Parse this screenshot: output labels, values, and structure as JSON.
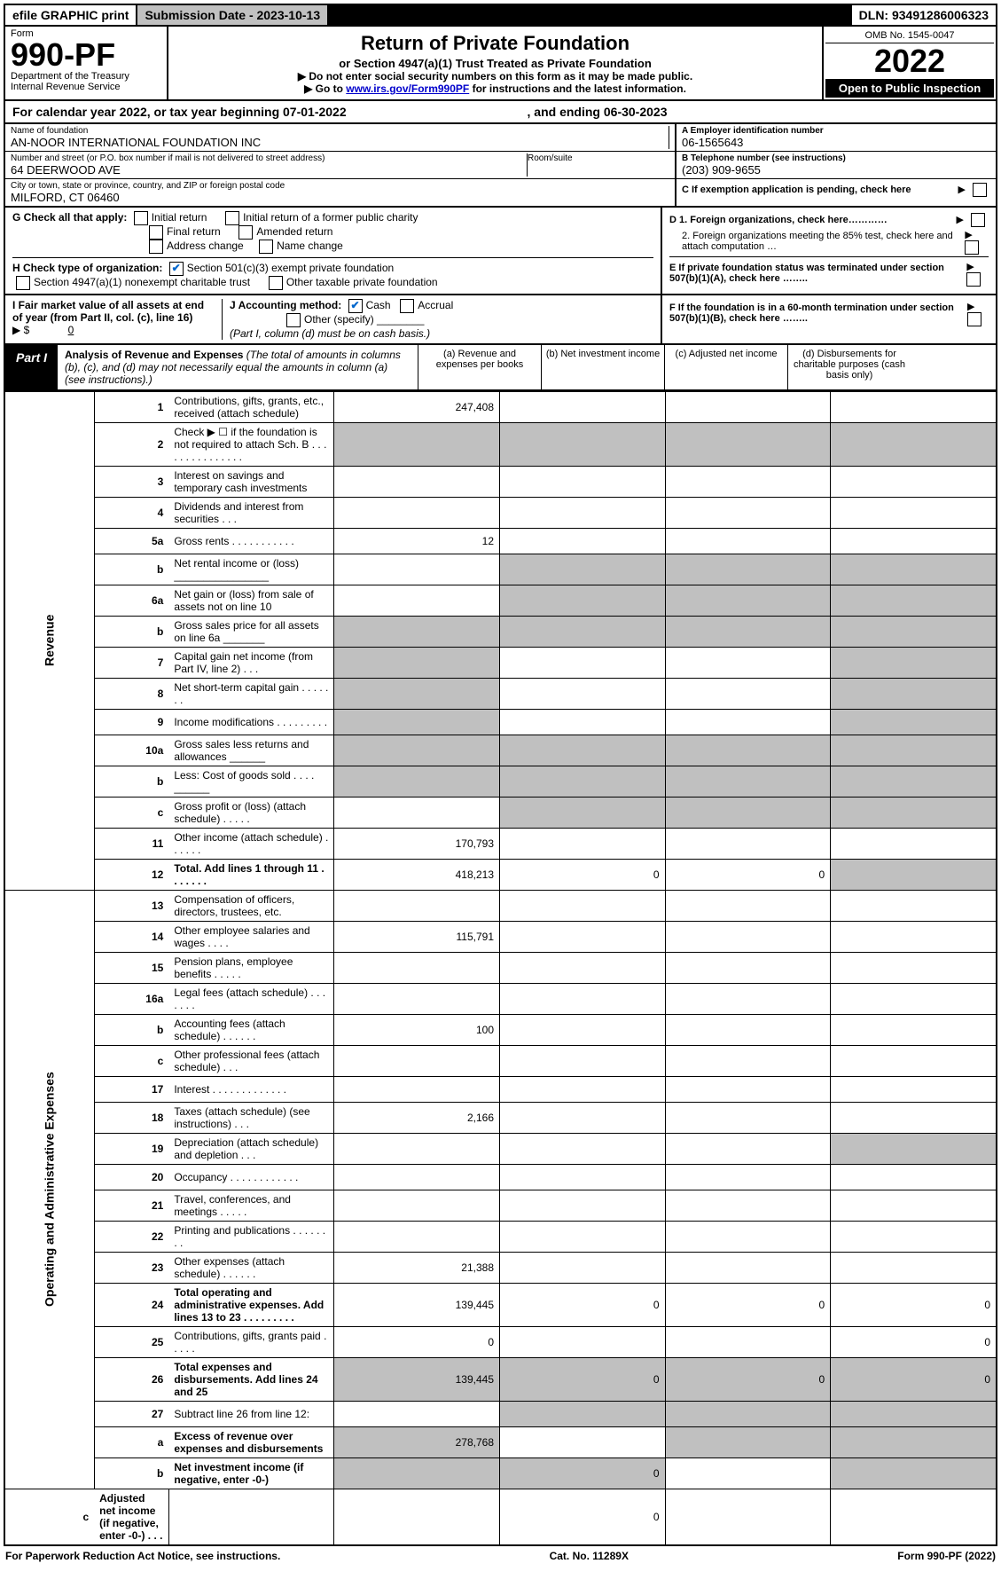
{
  "topbar": {
    "efile": "efile GRAPHIC print",
    "submission_label": "Submission Date - 2023-10-13",
    "dln": "DLN: 93491286006323"
  },
  "header": {
    "form_label": "Form",
    "form_num": "990-PF",
    "dept": "Department of the Treasury",
    "irs": "Internal Revenue Service",
    "title": "Return of Private Foundation",
    "subtitle": "or Section 4947(a)(1) Trust Treated as Private Foundation",
    "instr1": "▶ Do not enter social security numbers on this form as it may be made public.",
    "instr2_a": "▶ Go to ",
    "instr2_link": "www.irs.gov/Form990PF",
    "instr2_b": " for instructions and the latest information.",
    "omb": "OMB No. 1545-0047",
    "year": "2022",
    "open": "Open to Public Inspection"
  },
  "calyear": {
    "prefix": "For calendar year 2022, or tax year beginning ",
    "begin": "07-01-2022",
    "mid": " , and ending ",
    "end": "06-30-2023"
  },
  "info": {
    "name_lbl": "Name of foundation",
    "name": "AN-NOOR INTERNATIONAL FOUNDATION INC",
    "addr_lbl": "Number and street (or P.O. box number if mail is not delivered to street address)",
    "addr": "64 DEERWOOD AVE",
    "room_lbl": "Room/suite",
    "city_lbl": "City or town, state or province, country, and ZIP or foreign postal code",
    "city": "MILFORD, CT  06460",
    "a_lbl": "A Employer identification number",
    "ein": "06-1565643",
    "b_lbl": "B Telephone number (see instructions)",
    "phone": "(203) 909-9655",
    "c_lbl": "C If exemption application is pending, check here"
  },
  "g": {
    "lbl": "G Check all that apply:",
    "initial": "Initial return",
    "initial_former": "Initial return of a former public charity",
    "final": "Final return",
    "amended": "Amended return",
    "addr_change": "Address change",
    "name_change": "Name change"
  },
  "h": {
    "lbl": "H Check type of organization:",
    "501c3": "Section 501(c)(3) exempt private foundation",
    "4947": "Section 4947(a)(1) nonexempt charitable trust",
    "other_tax": "Other taxable private foundation"
  },
  "i": {
    "lbl": "I Fair market value of all assets at end of year (from Part II, col. (c), line 16)",
    "arrow": "▶ $",
    "val": "0"
  },
  "j": {
    "lbl": "J Accounting method:",
    "cash": "Cash",
    "accrual": "Accrual",
    "other": "Other (specify)",
    "note": "(Part I, column (d) must be on cash basis.)"
  },
  "d_right": {
    "d1": "D 1. Foreign organizations, check here…………",
    "d2": "2. Foreign organizations meeting the 85% test, check here and attach computation …",
    "e": "E  If private foundation status was terminated under section 507(b)(1)(A), check here ……..",
    "f": "F  If the foundation is in a 60-month termination under section 507(b)(1)(B), check here ……..  "
  },
  "part1": {
    "lbl": "Part I",
    "title": "Analysis of Revenue and Expenses",
    "title_note": " (The total of amounts in columns (b), (c), and (d) may not necessarily equal the amounts in column (a) (see instructions).)",
    "col_a": "(a)  Revenue and expenses per books",
    "col_b": "(b)  Net investment income",
    "col_c": "(c)  Adjusted net income",
    "col_d": "(d)  Disbursements for charitable purposes (cash basis only)"
  },
  "side": {
    "rev": "Revenue",
    "exp": "Operating and Administrative Expenses"
  },
  "rows": [
    {
      "n": "1",
      "d": "Contributions, gifts, grants, etc., received (attach schedule)",
      "a": "247,408"
    },
    {
      "n": "2",
      "d": "Check ▶ ☐ if the foundation is not required to attach Sch. B     .   .   .   .   .   .   .   .   .   .   .   .   .   .   ."
    },
    {
      "n": "3",
      "d": "Interest on savings and temporary cash investments"
    },
    {
      "n": "4",
      "d": "Dividends and interest from securities     .   .   ."
    },
    {
      "n": "5a",
      "d": "Gross rents       .   .   .   .   .   .   .   .   .   .   .",
      "a": "12"
    },
    {
      "n": "b",
      "d": "Net rental income or (loss) ________________"
    },
    {
      "n": "6a",
      "d": "Net gain or (loss) from sale of assets not on line 10"
    },
    {
      "n": "b",
      "d": "Gross sales price for all assets on line 6a _______"
    },
    {
      "n": "7",
      "d": "Capital gain net income (from Part IV, line 2)   .   .   ."
    },
    {
      "n": "8",
      "d": "Net short-term capital gain   .   .   .   .   .   .   ."
    },
    {
      "n": "9",
      "d": "Income modifications   .   .   .   .   .   .   .   .   ."
    },
    {
      "n": "10a",
      "d": "Gross sales less returns and allowances  ______"
    },
    {
      "n": "b",
      "d": "Less: Cost of goods sold     .   .   .   .  ______"
    },
    {
      "n": "c",
      "d": "Gross profit or (loss) (attach schedule)     .   .   .   .   ."
    },
    {
      "n": "11",
      "d": "Other income (attach schedule)   .   .   .   .   .   .",
      "a": "170,793"
    },
    {
      "n": "12",
      "d": "Total. Add lines 1 through 11   .   .   .   .   .   .   .",
      "a": "418,213",
      "b": "0",
      "c": "0",
      "bold": true
    },
    {
      "n": "13",
      "d": "Compensation of officers, directors, trustees, etc."
    },
    {
      "n": "14",
      "d": "Other employee salaries and wages     .   .   .   .",
      "a": "115,791"
    },
    {
      "n": "15",
      "d": "Pension plans, employee benefits  .   .   .   .   ."
    },
    {
      "n": "16a",
      "d": "Legal fees (attach schedule)  .   .   .   .   .   .   ."
    },
    {
      "n": "b",
      "d": "Accounting fees (attach schedule)  .   .   .   .   .   .",
      "a": "100"
    },
    {
      "n": "c",
      "d": "Other professional fees (attach schedule)    .   .   ."
    },
    {
      "n": "17",
      "d": "Interest  .   .   .   .   .   .   .   .   .   .   .   .   ."
    },
    {
      "n": "18",
      "d": "Taxes (attach schedule) (see instructions)     .   .   .",
      "a": "2,166"
    },
    {
      "n": "19",
      "d": "Depreciation (attach schedule) and depletion    .   .   ."
    },
    {
      "n": "20",
      "d": "Occupancy  .   .   .   .   .   .   .   .   .   .   .   ."
    },
    {
      "n": "21",
      "d": "Travel, conferences, and meetings  .   .   .   .   ."
    },
    {
      "n": "22",
      "d": "Printing and publications  .   .   .   .   .   .   .   ."
    },
    {
      "n": "23",
      "d": "Other expenses (attach schedule) .   .   .   .   .   .",
      "a": "21,388"
    },
    {
      "n": "24",
      "d": "Total operating and administrative expenses. Add lines 13 to 23   .   .   .   .   .   .   .   .   .",
      "a": "139,445",
      "b": "0",
      "c": "0",
      "dd": "0",
      "bold": true
    },
    {
      "n": "25",
      "d": "Contributions, gifts, grants paid     .   .   .   .   .",
      "a": "0",
      "dd": "0"
    },
    {
      "n": "26",
      "d": "Total expenses and disbursements. Add lines 24 and 25",
      "a": "139,445",
      "b": "0",
      "c": "0",
      "dd": "0",
      "bold": true
    },
    {
      "n": "27",
      "d": "Subtract line 26 from line 12:"
    },
    {
      "n": "a",
      "d": "Excess of revenue over expenses and disbursements",
      "a": "278,768",
      "bold": true
    },
    {
      "n": "b",
      "d": "Net investment income (if negative, enter -0-)",
      "b": "0",
      "bold": true
    },
    {
      "n": "c",
      "d": "Adjusted net income (if negative, enter -0-)    .   .   .",
      "c": "0",
      "bold": true
    }
  ],
  "footer": {
    "left": "For Paperwork Reduction Act Notice, see instructions.",
    "mid": "Cat. No. 11289X",
    "right": "Form 990-PF (2022)"
  }
}
